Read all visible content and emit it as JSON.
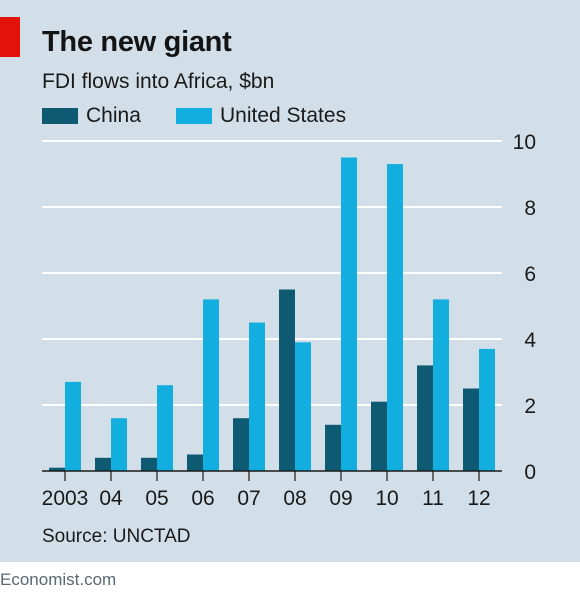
{
  "title": "The new giant",
  "subtitle": "FDI flows into Africa, $bn",
  "source": "Source: UNCTAD",
  "credit": "Economist.com",
  "colors": {
    "background": "#d3dfe8",
    "china": "#0f5a73",
    "united_states": "#13aee0",
    "gridline": "#ffffff",
    "accent": "#e3120b"
  },
  "chart_data": {
    "type": "bar",
    "categories": [
      "2003",
      "04",
      "05",
      "06",
      "07",
      "08",
      "09",
      "10",
      "11",
      "12"
    ],
    "series": [
      {
        "name": "China",
        "values": [
          0.1,
          0.4,
          0.4,
          0.5,
          1.6,
          5.5,
          1.4,
          2.1,
          3.2,
          2.5
        ]
      },
      {
        "name": "United States",
        "values": [
          2.7,
          1.6,
          2.6,
          5.2,
          4.5,
          3.9,
          9.5,
          9.3,
          5.2,
          3.7
        ]
      }
    ],
    "ylim": [
      0,
      10
    ],
    "yticks": [
      0,
      2,
      4,
      6,
      8,
      10
    ],
    "y_axis_position": "right",
    "grid": true,
    "legend_position": "top-left"
  }
}
